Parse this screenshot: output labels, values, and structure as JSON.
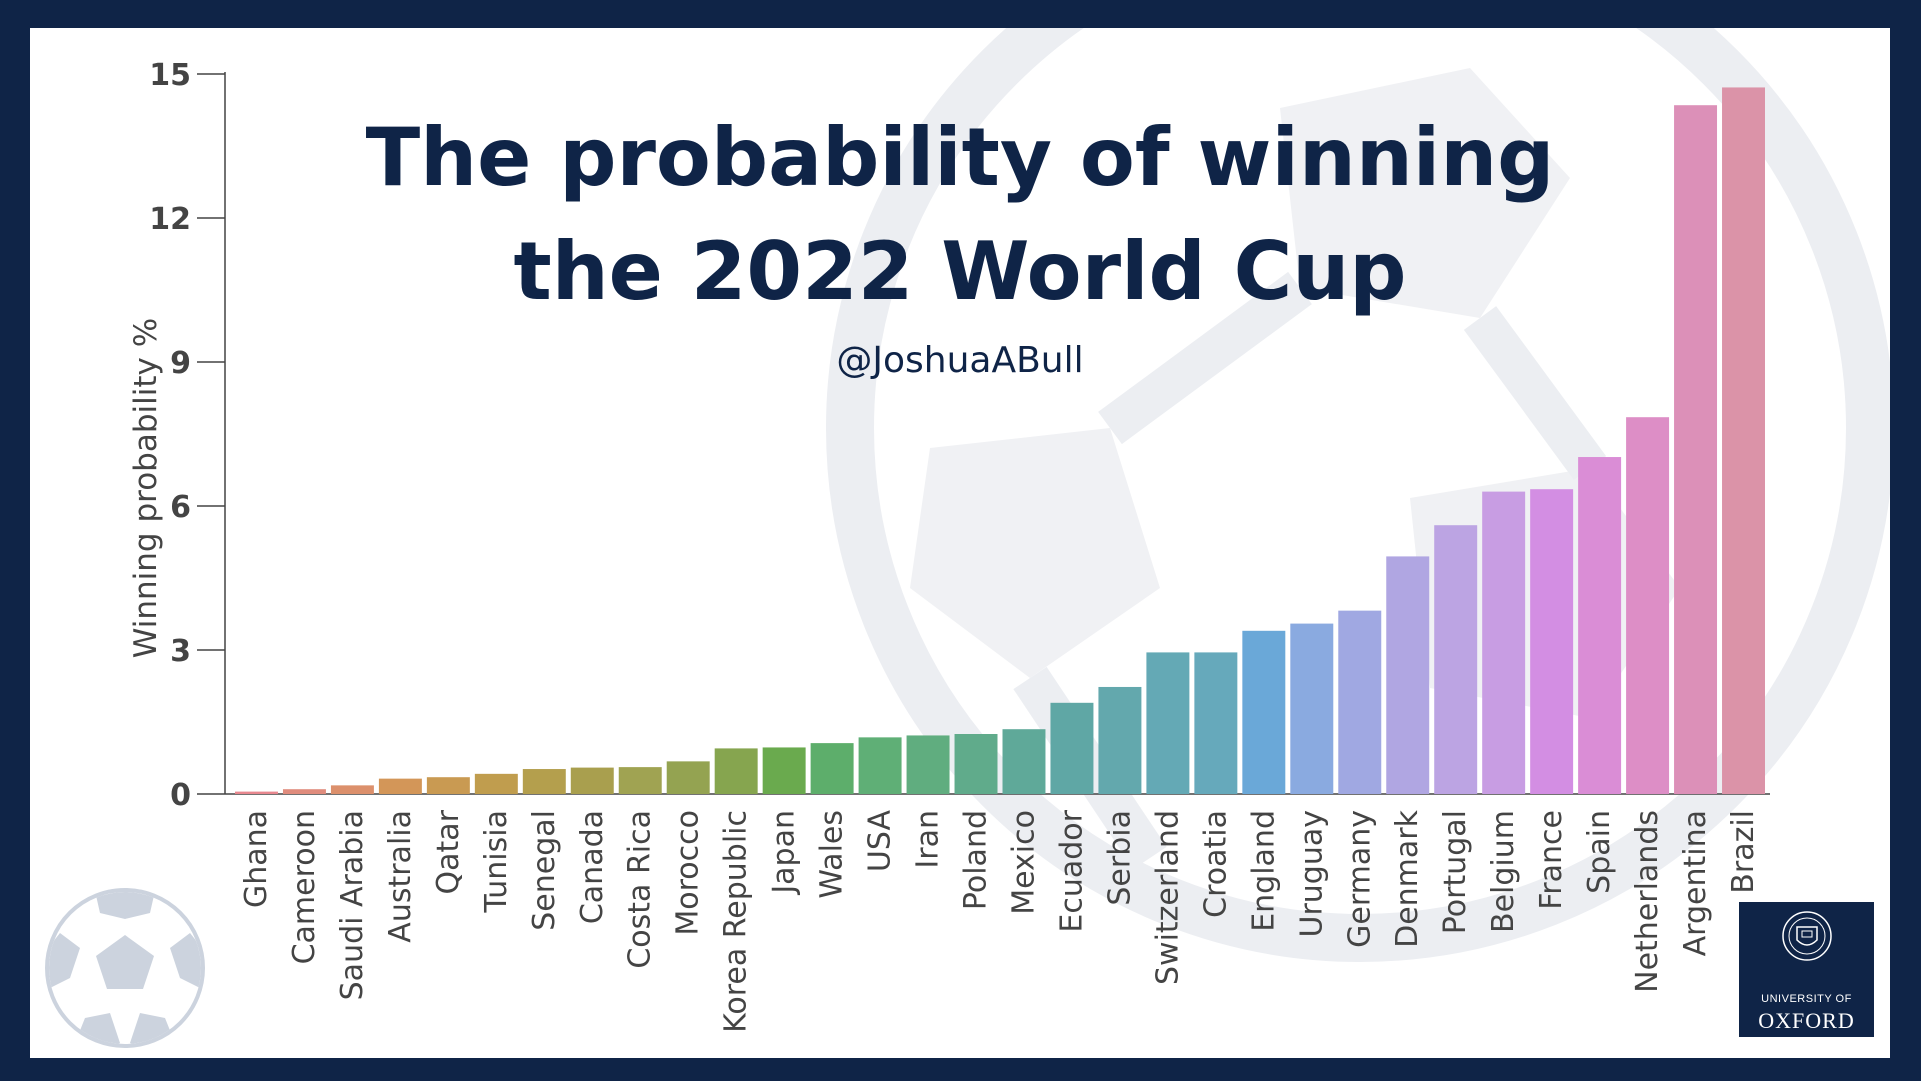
{
  "header": {
    "title_line1": "The probability of winning",
    "title_line2": "the 2022 World Cup",
    "subtitle": "@JoshuaABull"
  },
  "branding": {
    "logo_line1": "UNIVERSITY OF",
    "logo_line2": "OXFORD",
    "logo_color": "#0f2447"
  },
  "chart_data": {
    "type": "bar",
    "title": "The probability of winning the 2022 World Cup",
    "xlabel": "",
    "ylabel": "Winning probability %",
    "ylim": [
      0,
      15
    ],
    "yticks": [
      0,
      3,
      6,
      9,
      12,
      15
    ],
    "grid": false,
    "categories": [
      "Ghana",
      "Cameroon",
      "Saudi Arabia",
      "Australia",
      "Qatar",
      "Tunisia",
      "Senegal",
      "Canada",
      "Costa Rica",
      "Morocco",
      "Korea Republic",
      "Japan",
      "Wales",
      "USA",
      "Iran",
      "Poland",
      "Mexico",
      "Ecuador",
      "Serbia",
      "Switzerland",
      "Croatia",
      "England",
      "Uruguay",
      "Germany",
      "Denmark",
      "Portugal",
      "Belgium",
      "France",
      "Spain",
      "Netherlands",
      "Argentina",
      "Brazil"
    ],
    "values": [
      0.05,
      0.1,
      0.18,
      0.32,
      0.35,
      0.42,
      0.52,
      0.55,
      0.56,
      0.68,
      0.95,
      0.97,
      1.06,
      1.18,
      1.22,
      1.25,
      1.35,
      1.9,
      2.23,
      2.95,
      2.95,
      3.4,
      3.55,
      3.82,
      4.95,
      5.6,
      6.3,
      6.35,
      7.02,
      7.85,
      14.35,
      14.72
    ],
    "colors": [
      "#e8888f",
      "#e08c7d",
      "#dc906c",
      "#d39658",
      "#c99a52",
      "#c09d4e",
      "#b49f4d",
      "#a99f4e",
      "#a0a352",
      "#94a351",
      "#86a54f",
      "#6aaa4e",
      "#5dae6b",
      "#5faf76",
      "#60ad7f",
      "#60ab8b",
      "#5fa999",
      "#5fa7a5",
      "#63a8ad",
      "#64a9b5",
      "#66a9bb",
      "#6aa8d8",
      "#8aaae0",
      "#a0a8e2",
      "#b0a6e2",
      "#bca4e3",
      "#c89de3",
      "#d38ee3",
      "#da8dd6",
      "#dd8ec6",
      "#dc90b8",
      "#db93a8"
    ]
  }
}
